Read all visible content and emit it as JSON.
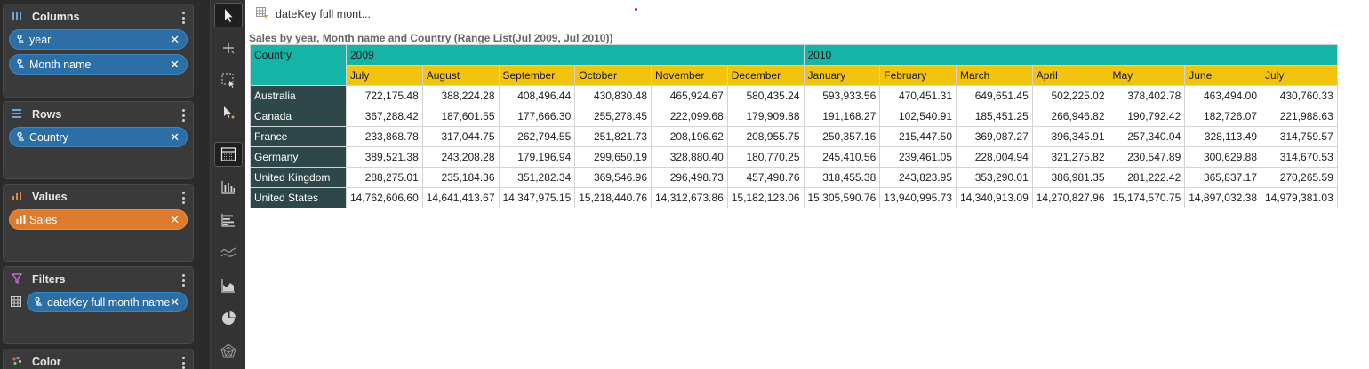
{
  "sidebar": {
    "columns": {
      "title": "Columns",
      "fields": [
        "year",
        "Month name"
      ]
    },
    "rows": {
      "title": "Rows",
      "fields": [
        "Country"
      ]
    },
    "values": {
      "title": "Values",
      "fields": [
        "Sales"
      ]
    },
    "filters": {
      "title": "Filters",
      "fields": [
        "dateKey full month name"
      ]
    },
    "color": {
      "title": "Color"
    }
  },
  "icons": {
    "columns": "columns-icon",
    "rows": "rows-icon",
    "values": "bar-chart-icon",
    "filters": "funnel-icon",
    "color": "palette-icon",
    "field": "hierarchy-icon",
    "remove": "close-icon"
  },
  "colors": {
    "accent_blue": "#2c6fa6",
    "accent_orange": "#dd7a2e",
    "header_teal": "#16b4a6",
    "header_yellow": "#f1c40f",
    "row_header": "#2e4749"
  },
  "tab": {
    "title": "dateKey full mont..."
  },
  "chart_title": "Sales by year, Month name and Country (Range List(Jul 2009, Jul 2010))",
  "pivot": {
    "corner": "Country",
    "years": [
      {
        "label": "2009",
        "span": 6
      },
      {
        "label": "2010",
        "span": 7
      }
    ],
    "months": [
      "July",
      "August",
      "September",
      "October",
      "November",
      "December",
      "January",
      "February",
      "March",
      "April",
      "May",
      "June",
      "July"
    ],
    "rows": [
      {
        "country": "Australia",
        "values": [
          "722,175.48",
          "388,224.28",
          "408,496.44",
          "430,830.48",
          "465,924.67",
          "580,435.24",
          "593,933.56",
          "470,451.31",
          "649,651.45",
          "502,225.02",
          "378,402.78",
          "463,494.00",
          "430,760.33"
        ]
      },
      {
        "country": "Canada",
        "values": [
          "367,288.42",
          "187,601.55",
          "177,666.30",
          "255,278.45",
          "222,099.68",
          "179,909.88",
          "191,168.27",
          "102,540.91",
          "185,451.25",
          "266,946.82",
          "190,792.42",
          "182,726.07",
          "221,988.63"
        ]
      },
      {
        "country": "France",
        "values": [
          "233,868.78",
          "317,044.75",
          "262,794.55",
          "251,821.73",
          "208,196.62",
          "208,955.75",
          "250,357.16",
          "215,447.50",
          "369,087.27",
          "396,345.91",
          "257,340.04",
          "328,113.49",
          "314,759.57"
        ]
      },
      {
        "country": "Germany",
        "values": [
          "389,521.38",
          "243,208.28",
          "179,196.94",
          "299,650.19",
          "328,880.40",
          "180,770.25",
          "245,410.56",
          "239,461.05",
          "228,004.94",
          "321,275.82",
          "230,547.89",
          "300,629.88",
          "314,670.53"
        ]
      },
      {
        "country": "United Kingdom",
        "values": [
          "288,275.01",
          "235,184.36",
          "351,282.34",
          "369,546.96",
          "296,498.73",
          "457,498.76",
          "318,455.38",
          "243,823.95",
          "353,290.01",
          "386,981.35",
          "281,222.42",
          "365,837.17",
          "270,265.59"
        ]
      },
      {
        "country": "United States",
        "values": [
          "14,762,606.60",
          "14,641,413.67",
          "14,347,975.15",
          "15,218,440.76",
          "14,312,673.86",
          "15,182,123.06",
          "15,305,590.76",
          "13,940,995.73",
          "14,340,913.09",
          "14,270,827.96",
          "15,174,570.75",
          "14,897,032.38",
          "14,979,381.03"
        ]
      }
    ]
  }
}
